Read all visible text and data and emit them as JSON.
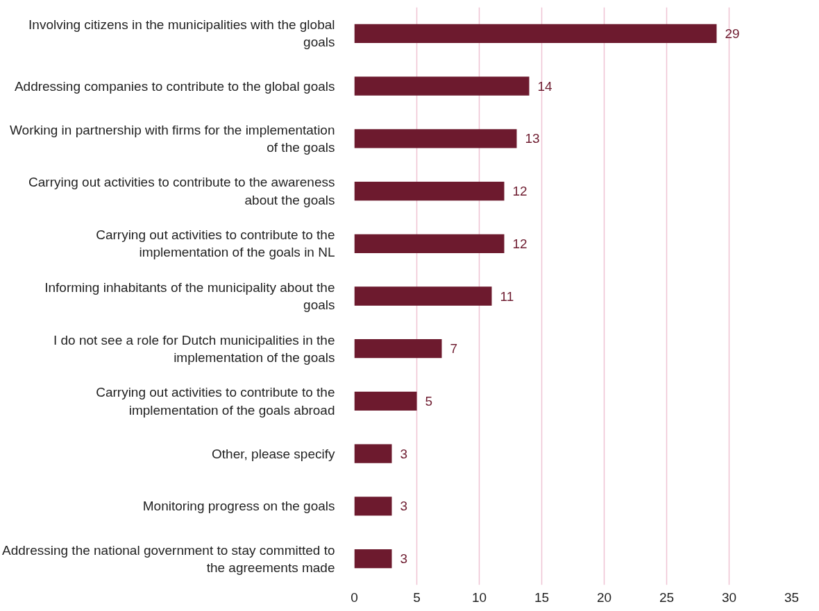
{
  "chart_data": {
    "type": "bar",
    "orientation": "horizontal",
    "categories": [
      "Involving citizens in the municipalities with the global goals",
      "Addressing companies to contribute to the global goals",
      "Working in partnership with firms for the implementation of the goals",
      "Carrying out activities to contribute to the awareness about the goals",
      "Carrying out activities to contribute to the implementation of the goals in NL",
      "Informing inhabitants of the municipality about the goals",
      "I do not see a role for Dutch municipalities in the implementation of the goals",
      "Carrying out activities to contribute to the implementation of the goals abroad",
      "Other, please specify",
      "Monitoring progress on the goals",
      "Addressing the national government to stay committed to the agreements made"
    ],
    "values": [
      29,
      14,
      13,
      12,
      12,
      11,
      7,
      5,
      3,
      3,
      3
    ],
    "color": "#6d1a2e",
    "xlim": [
      0,
      35
    ],
    "xticks": [
      0,
      5,
      10,
      15,
      20,
      25,
      30,
      35
    ],
    "grid": "x",
    "data_labels": true
  }
}
